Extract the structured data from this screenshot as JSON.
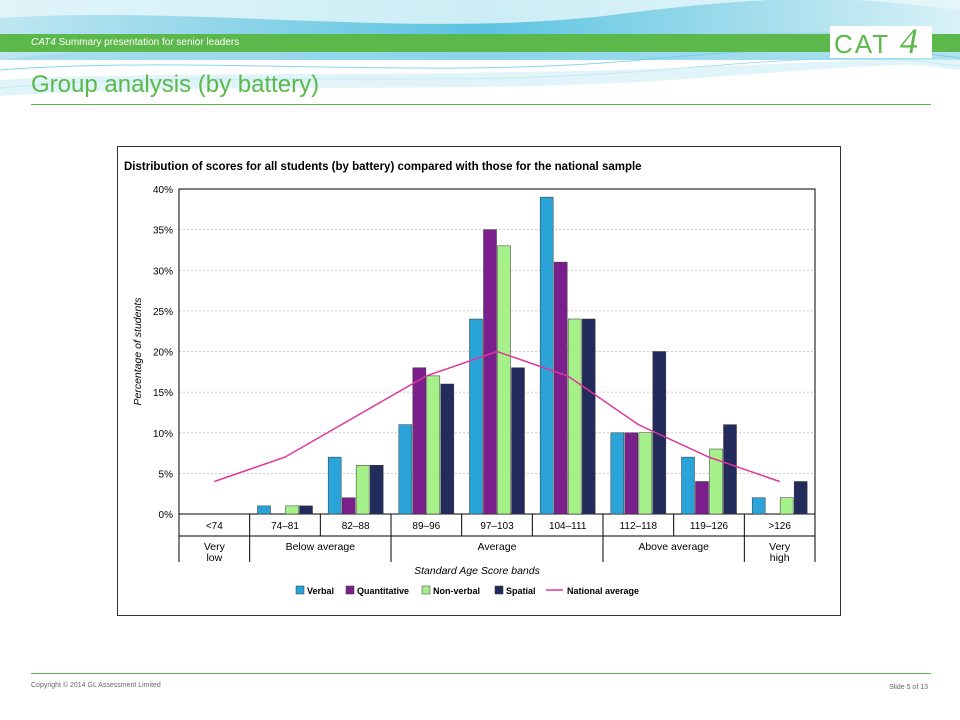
{
  "header": {
    "caption_em": "CAT4",
    "caption_rest": "Summary presentation for senior leaders",
    "logo_text": "CAT",
    "logo_mark": "4"
  },
  "slide": {
    "title": "Group analysis (by battery)"
  },
  "footer": {
    "copyright": "Copyright © 2014 GL Assessment Limited",
    "slide_number": "Slide 5 of 13"
  },
  "colors": {
    "accent": "#5cb84a",
    "verbal": "#2aa3d8",
    "quantitative": "#7b1f8c",
    "nonverbal": "#a6f08a",
    "spatial": "#232a5c",
    "national": "#e0359a"
  },
  "chart_data": {
    "type": "bar",
    "title": "Distribution of scores for all students (by battery) compared with those for the national sample",
    "xlabel": "Standard Age Score bands",
    "ylabel": "Percentage of students",
    "ylim": [
      0,
      40
    ],
    "yticks": [
      "0%",
      "5%",
      "10%",
      "15%",
      "20%",
      "25%",
      "30%",
      "35%",
      "40%"
    ],
    "grid": true,
    "legend_position": "bottom",
    "categories": [
      "<74",
      "74–81",
      "82–88",
      "89–96",
      "97–103",
      "104–111",
      "112–118",
      "119–126",
      ">126"
    ],
    "groups": [
      {
        "label": [
          "Very",
          "low"
        ],
        "span": [
          0,
          0
        ]
      },
      {
        "label": [
          "Below average"
        ],
        "span": [
          1,
          2
        ]
      },
      {
        "label": [
          "Average"
        ],
        "span": [
          3,
          5
        ]
      },
      {
        "label": [
          "Above average"
        ],
        "span": [
          6,
          7
        ]
      },
      {
        "label": [
          "Very",
          "high"
        ],
        "span": [
          8,
          8
        ]
      }
    ],
    "series": [
      {
        "name": "Verbal",
        "color": "#2aa3d8",
        "values": [
          0,
          1,
          7,
          11,
          24,
          39,
          10,
          7,
          2
        ]
      },
      {
        "name": "Quantitative",
        "color": "#7b1f8c",
        "values": [
          0,
          0,
          2,
          18,
          35,
          31,
          10,
          4,
          0
        ]
      },
      {
        "name": "Non-verbal",
        "color": "#a6f08a",
        "values": [
          0,
          1,
          6,
          17,
          33,
          24,
          10,
          8,
          2
        ]
      },
      {
        "name": "Spatial",
        "color": "#232a5c",
        "values": [
          0,
          1,
          6,
          16,
          18,
          24,
          20,
          11,
          4
        ]
      }
    ],
    "line_series": {
      "name": "National average",
      "color": "#e0359a",
      "values": [
        4,
        7,
        12,
        17,
        20,
        17,
        11,
        7,
        4
      ]
    }
  }
}
